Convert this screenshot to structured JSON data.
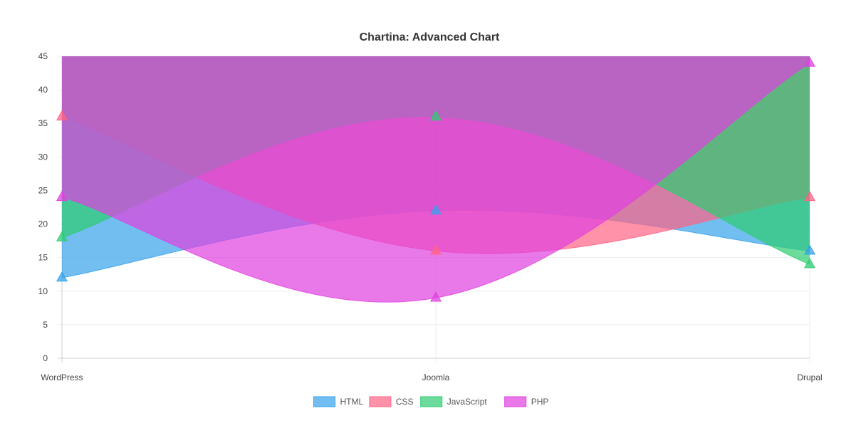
{
  "chart_data": {
    "type": "area",
    "title": "Chartina: Advanced Chart",
    "xlabel": "",
    "ylabel": "",
    "categories": [
      "WordPress",
      "Joomla",
      "Drupal"
    ],
    "ylim": [
      0,
      45
    ],
    "yticks": [
      0,
      5,
      10,
      15,
      20,
      25,
      30,
      35,
      40,
      45
    ],
    "fill_origin": 45,
    "grid": true,
    "legend_position": "bottom",
    "marker": "triangle",
    "curve": "smooth",
    "series": [
      {
        "name": "HTML",
        "values": [
          12,
          22,
          16
        ],
        "color": "#36a2eb"
      },
      {
        "name": "CSS",
        "values": [
          36,
          16,
          24
        ],
        "color": "#ff6384"
      },
      {
        "name": "JavaScript",
        "values": [
          18,
          36,
          14
        ],
        "color": "#2ecc71"
      },
      {
        "name": "PHP",
        "values": [
          24,
          9,
          44
        ],
        "color": "#e040e0"
      }
    ]
  }
}
